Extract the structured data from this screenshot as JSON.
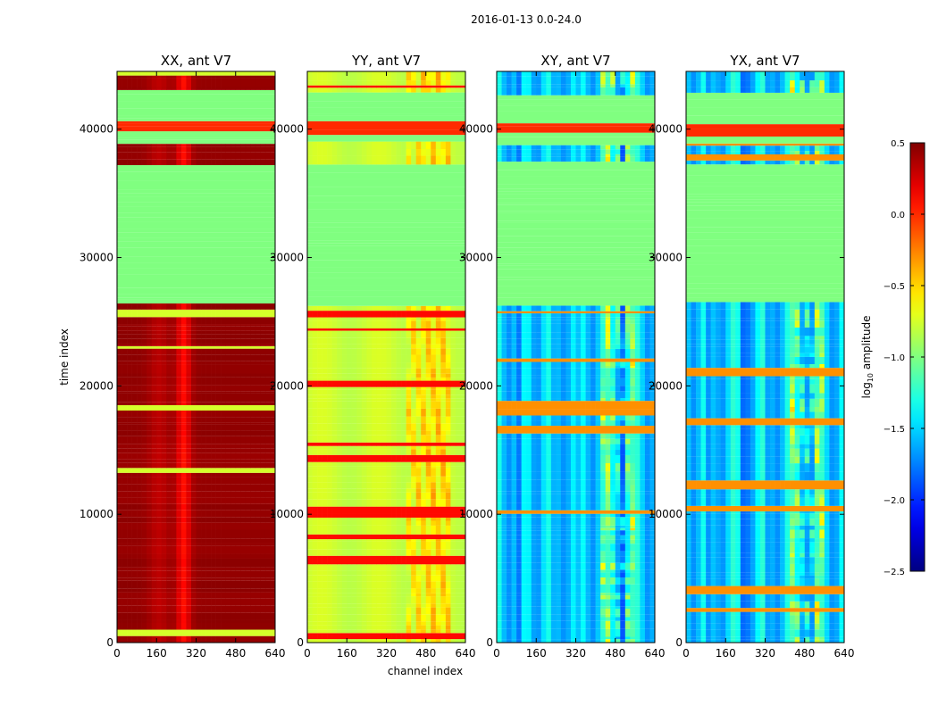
{
  "figure_title": "2016-01-13 0.0-24.0",
  "chart_data": {
    "type": "heatmap",
    "title": "2016-01-13 0.0-24.0",
    "xlabel": "channel index",
    "ylabel": "time index",
    "x_range": [
      0,
      640
    ],
    "y_range": [
      0,
      44500
    ],
    "x_ticks": [
      "0",
      "160",
      "320",
      "480",
      "640"
    ],
    "y_ticks": [
      "0",
      "10000",
      "20000",
      "30000",
      "40000"
    ],
    "x_tick_values": [
      0,
      160,
      320,
      480,
      640
    ],
    "y_tick_values": [
      0,
      10000,
      20000,
      30000,
      40000
    ],
    "colorbar": {
      "label": "log10 amplitude",
      "label_main": "log",
      "label_sub": "10",
      "label_rest": " amplitude",
      "range": [
        -2.5,
        0.5
      ],
      "colormap": "jet",
      "ticks": [
        "0.5",
        "0.0",
        "−0.5",
        "−1.0",
        "−1.5",
        "−2.0",
        "−2.5"
      ],
      "tick_values": [
        0.5,
        0.0,
        -0.5,
        -1.0,
        -1.5,
        -2.0,
        -2.5
      ]
    },
    "flagged_regions": [
      {
        "t_start": 26500,
        "t_end": 37400,
        "log10_value": -1.0
      },
      {
        "t_start": 38800,
        "t_end": 39700,
        "log10_value": -1.0
      },
      {
        "t_start": 39700,
        "t_end": 40700,
        "log10_value": 0.0
      },
      {
        "t_start": 40700,
        "t_end": 42900,
        "log10_value": -1.0
      }
    ],
    "panels": [
      {
        "title": "XX, ant V7",
        "polarization": "XX",
        "antenna": "V7",
        "typical_log10_amplitude": 0.45
      },
      {
        "title": "YY, ant V7",
        "polarization": "YY",
        "antenna": "V7",
        "typical_log10_amplitude": -0.75
      },
      {
        "title": "XY, ant V7",
        "polarization": "XY",
        "antenna": "V7",
        "typical_log10_amplitude": -1.5
      },
      {
        "title": "YX, ant V7",
        "polarization": "YX",
        "antenna": "V7",
        "typical_log10_amplitude": -1.5
      }
    ]
  }
}
